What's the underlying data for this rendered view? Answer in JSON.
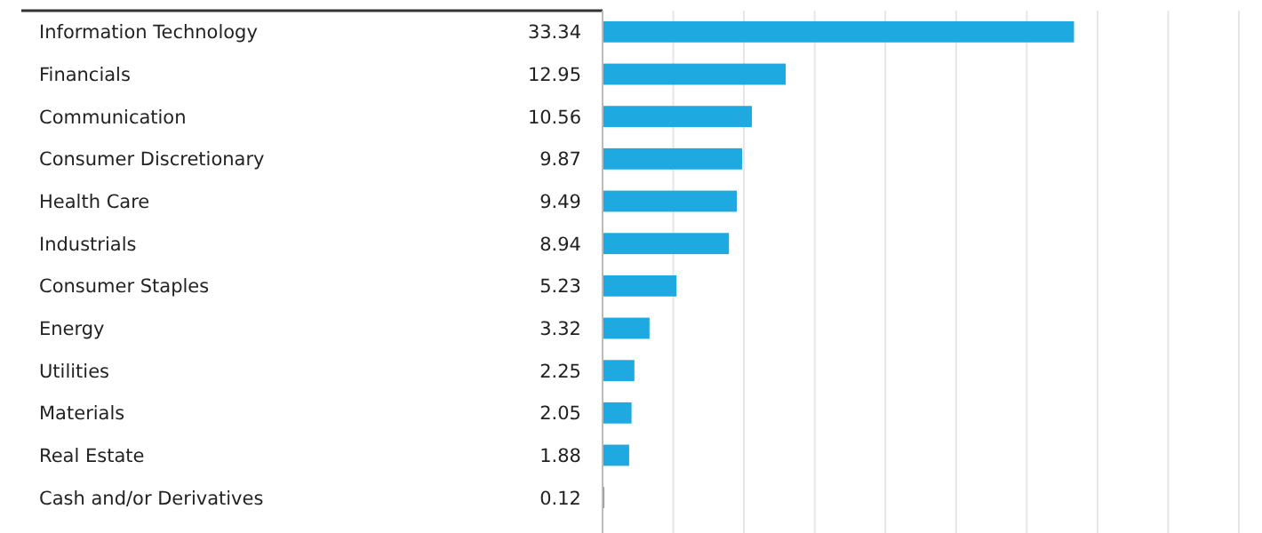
{
  "chart_data": {
    "type": "bar",
    "orientation": "horizontal",
    "categories": [
      "Information Technology",
      "Financials",
      "Communication",
      "Consumer Discretionary",
      "Health Care",
      "Industrials",
      "Consumer Staples",
      "Energy",
      "Utilities",
      "Materials",
      "Real Estate",
      "Cash and/or Derivatives"
    ],
    "values": [
      33.34,
      12.95,
      10.56,
      9.87,
      9.49,
      8.94,
      5.23,
      3.32,
      2.25,
      2.05,
      1.88,
      0.12
    ],
    "color": "#1fa9e1",
    "xlim": [
      0,
      45
    ],
    "xticks": [
      {
        "value": 0,
        "label": null
      },
      {
        "value": 5,
        "label": null
      },
      {
        "value": 10,
        "label": null
      },
      {
        "value": 15,
        "label": null
      },
      {
        "value": 20,
        "label": null
      },
      {
        "value": 25,
        "label": null
      },
      {
        "value": 30,
        "label": null
      },
      {
        "value": 35,
        "label": null
      },
      {
        "value": 40,
        "label": null
      },
      {
        "value": 45,
        "label": null
      }
    ],
    "grid": "x",
    "data_labels": true,
    "tick_labels": "y"
  }
}
